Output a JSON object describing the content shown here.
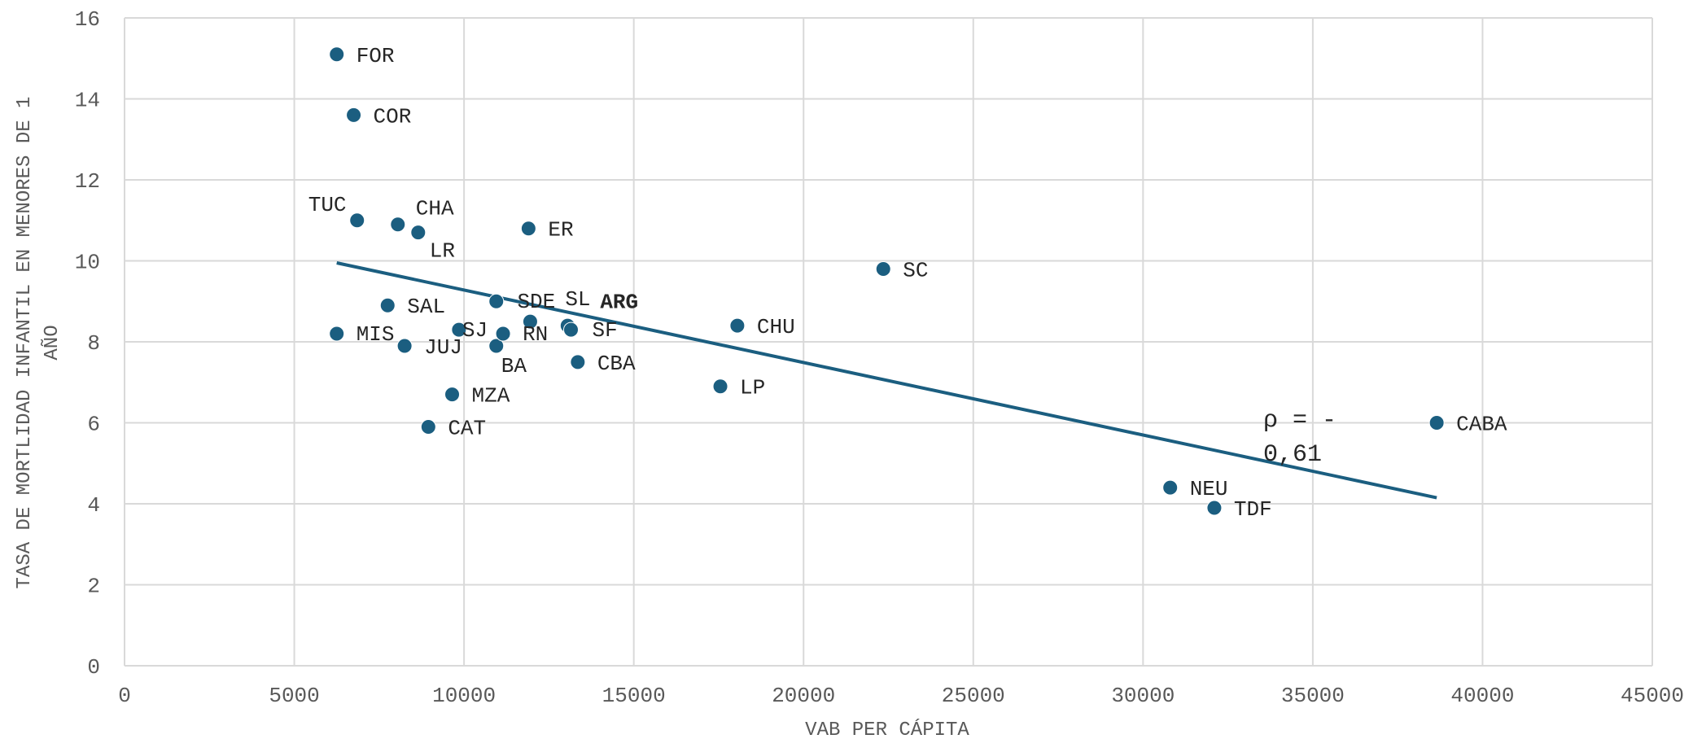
{
  "chart_data": {
    "type": "scatter",
    "title": "",
    "xlabel": "VAB PER CÁPITA",
    "ylabel": [
      "TASA DE MORTLIDAD INFANTIL EN MENORES DE 1",
      "AÑO"
    ],
    "xlim": [
      0,
      45000
    ],
    "ylim": [
      0,
      16
    ],
    "x_ticks": [
      0,
      5000,
      10000,
      15000,
      20000,
      25000,
      30000,
      35000,
      40000,
      45000
    ],
    "y_ticks": [
      0,
      2,
      4,
      6,
      8,
      10,
      12,
      14,
      16
    ],
    "grid": true,
    "marker_color": "#1b5e80",
    "points": [
      {
        "label": "FOR",
        "x": 6250,
        "y": 15.1
      },
      {
        "label": "COR",
        "x": 6750,
        "y": 13.6
      },
      {
        "label": "TUC",
        "x": 6850,
        "y": 11.0
      },
      {
        "label": "CHA",
        "x": 8050,
        "y": 10.9
      },
      {
        "label": "LR",
        "x": 8650,
        "y": 10.7
      },
      {
        "label": "ER",
        "x": 11900,
        "y": 10.8
      },
      {
        "label": "SC",
        "x": 22350,
        "y": 9.8
      },
      {
        "label": "SAL",
        "x": 7750,
        "y": 8.9
      },
      {
        "label": "SJ",
        "x": 9850,
        "y": 8.3
      },
      {
        "label": "ARG",
        "x": 10950,
        "y": 9.0,
        "bold": true
      },
      {
        "label": "SDE",
        "x": 11950,
        "y": 8.5
      },
      {
        "label": "SL",
        "x": 13050,
        "y": 8.4
      },
      {
        "label": "SF",
        "x": 13150,
        "y": 8.3
      },
      {
        "label": "CHU",
        "x": 18050,
        "y": 8.4
      },
      {
        "label": "MIS",
        "x": 6250,
        "y": 8.2
      },
      {
        "label": "JUJ",
        "x": 8250,
        "y": 7.9
      },
      {
        "label": "BA",
        "x": 10950,
        "y": 7.9
      },
      {
        "label": "RN",
        "x": 11150,
        "y": 8.2
      },
      {
        "label": "CBA",
        "x": 13350,
        "y": 7.5
      },
      {
        "label": "LP",
        "x": 17550,
        "y": 6.9
      },
      {
        "label": "MZA",
        "x": 9650,
        "y": 6.7
      },
      {
        "label": "CAT",
        "x": 8950,
        "y": 5.9
      },
      {
        "label": "CABA",
        "x": 38650,
        "y": 6.0
      },
      {
        "label": "NEU",
        "x": 30800,
        "y": 4.4
      },
      {
        "label": "TDF",
        "x": 32100,
        "y": 3.9
      }
    ],
    "trendline": {
      "x": [
        6250,
        38650
      ],
      "y": [
        9.95,
        4.15
      ]
    },
    "annotation": [
      "ρ = -",
      "0,61"
    ]
  }
}
